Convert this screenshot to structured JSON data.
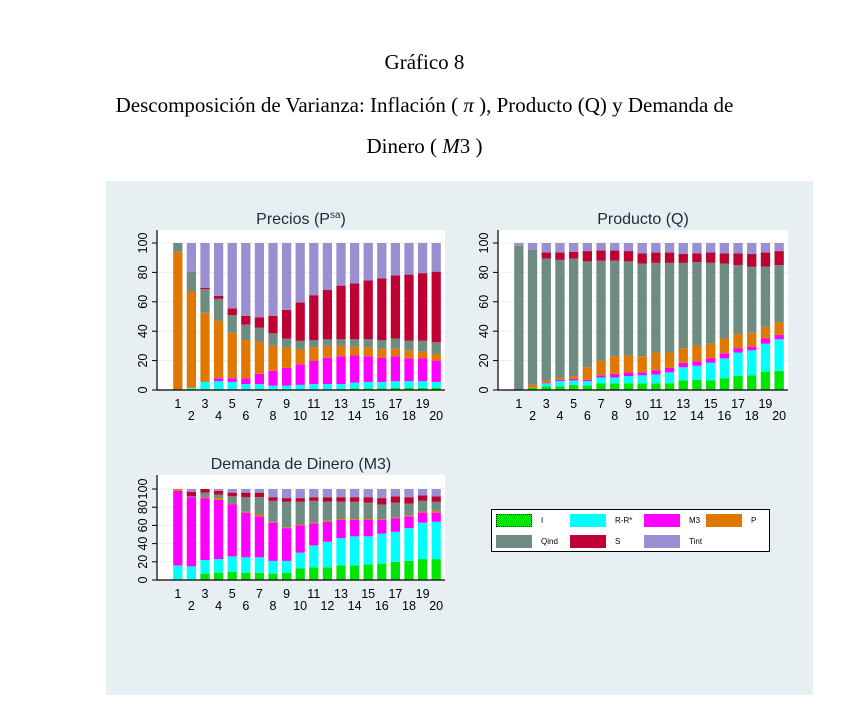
{
  "document": {
    "figure_label": "Gráfico 8",
    "title_line1_a": "Descomposición de Varianza: Inflación (",
    "title_pi": "π",
    "title_line1_b": "), Producto (Q) y Demanda de",
    "title_line2_a": "Dinero (",
    "title_m3": "M",
    "title_m3_num": "3",
    "title_line2_b": ")"
  },
  "colors": {
    "I": "#00e600",
    "R-R*": "#00ffff",
    "M3": "#ff00ff",
    "P": "#e07800",
    "Qind": "#6e8c82",
    "S": "#be0032",
    "Tint": "#9a8fd0",
    "panel_bg": "#e8eff2"
  },
  "legend": {
    "items": [
      {
        "key": "I",
        "label": "I"
      },
      {
        "key": "R-R*",
        "label": "R-R*"
      },
      {
        "key": "M3",
        "label": "M3"
      },
      {
        "key": "P",
        "label": "P"
      },
      {
        "key": "Qind",
        "label": "Qind"
      },
      {
        "key": "S",
        "label": "S"
      },
      {
        "key": "Tint",
        "label": "Tint"
      }
    ]
  },
  "chart_data": [
    {
      "type": "bar",
      "stacked": true,
      "title": "Precios (P",
      "title_sup": "sa",
      "title_end": ")",
      "ylim": [
        0,
        100
      ],
      "yticks": [
        "0",
        "20",
        "40",
        "60",
        "80",
        "100"
      ],
      "categories": [
        "1",
        "2",
        "3",
        "4",
        "5",
        "6",
        "7",
        "8",
        "9",
        "10",
        "11",
        "12",
        "13",
        "14",
        "15",
        "16",
        "17",
        "18",
        "19",
        "20"
      ],
      "series": [
        {
          "name": "I",
          "values": [
            0,
            0,
            0.5,
            0.5,
            0.5,
            0.5,
            0.5,
            0.5,
            0.5,
            0.5,
            0.5,
            0.5,
            0.5,
            1,
            1,
            1,
            1.5,
            1.5,
            1.5,
            1.5
          ]
        },
        {
          "name": "R-R*",
          "values": [
            0,
            1.5,
            5,
            5.5,
            5,
            3.5,
            3.5,
            2.5,
            2.5,
            3,
            3.5,
            3.5,
            3.5,
            4,
            4.5,
            4.5,
            4.5,
            4.5,
            4.5,
            4
          ]
        },
        {
          "name": "M3",
          "values": [
            0,
            0,
            0,
            2,
            2.5,
            4,
            7,
            10,
            12,
            14,
            16,
            18,
            19,
            18.5,
            17.5,
            16.5,
            17,
            15.5,
            15.5,
            14.5
          ]
        },
        {
          "name": "P",
          "values": [
            94,
            65.5,
            47,
            39,
            31,
            26,
            22,
            17,
            14,
            10,
            9,
            8,
            7,
            6,
            6,
            6,
            5,
            5.5,
            4.5,
            4.5
          ]
        },
        {
          "name": "Qind",
          "values": [
            6,
            13.5,
            16,
            15,
            12,
            10.5,
            9.5,
            8.5,
            6,
            6,
            5,
            4.5,
            4.5,
            5,
            5.5,
            6,
            7,
            6.5,
            7.5,
            8
          ]
        },
        {
          "name": "S",
          "values": [
            0,
            0,
            1,
            2,
            4.5,
            6,
            7,
            12,
            19.5,
            26,
            30.5,
            33.5,
            36.5,
            38,
            40,
            42,
            43,
            45,
            46,
            48
          ]
        },
        {
          "name": "Tint",
          "values": [
            0,
            19.5,
            30.5,
            36,
            44.5,
            49.5,
            50.5,
            49.5,
            45.5,
            40.5,
            35.5,
            32,
            29,
            27.5,
            25.5,
            24,
            22,
            21.5,
            20.5,
            19.5
          ]
        }
      ]
    },
    {
      "type": "bar",
      "stacked": true,
      "title": "Producto (Q)",
      "ylim": [
        0,
        100
      ],
      "yticks": [
        "0",
        "20",
        "40",
        "60",
        "80",
        "100"
      ],
      "categories": [
        "1",
        "2",
        "3",
        "4",
        "5",
        "6",
        "7",
        "8",
        "9",
        "10",
        "11",
        "12",
        "13",
        "14",
        "15",
        "16",
        "17",
        "18",
        "19",
        "20"
      ],
      "series": [
        {
          "name": "I",
          "values": [
            0,
            1.5,
            2.5,
            2.5,
            3.5,
            3,
            4.5,
            4.5,
            4.5,
            4.5,
            4.5,
            4.5,
            6.5,
            7,
            6.5,
            8,
            9.5,
            10,
            12.5,
            13
          ]
        },
        {
          "name": "R-R*",
          "values": [
            0,
            0,
            2,
            3.5,
            3,
            3,
            4,
            4,
            5,
            5.5,
            6,
            7.5,
            9,
            9.5,
            12,
            13.5,
            16,
            17,
            19,
            21.5
          ]
        },
        {
          "name": "M3",
          "values": [
            0,
            0,
            0.5,
            1,
            1,
            1,
            1.5,
            2.5,
            2.5,
            2,
            3,
            3,
            3,
            3,
            3,
            3.5,
            3,
            2.5,
            3.5,
            3
          ]
        },
        {
          "name": "P",
          "values": [
            0,
            2,
            1.5,
            1.5,
            2,
            8.5,
            10,
            12,
            11.5,
            11,
            12,
            10.5,
            10,
            10.5,
            10,
            10,
            9.5,
            9.5,
            8,
            8.5
          ]
        },
        {
          "name": "Qind",
          "values": [
            98,
            92,
            83,
            80,
            80,
            72,
            68,
            65,
            64,
            63,
            61,
            61,
            58,
            57,
            55,
            51,
            47,
            45,
            41,
            39
          ]
        },
        {
          "name": "S",
          "values": [
            0,
            0,
            4,
            5,
            4.5,
            7,
            7,
            7,
            7,
            7,
            7,
            7,
            6,
            6,
            7,
            7,
            8,
            8.5,
            9.5,
            9.5
          ]
        },
        {
          "name": "Tint",
          "values": [
            2,
            4.5,
            6.5,
            6.5,
            6,
            5.5,
            5,
            5,
            5.5,
            7,
            6.5,
            6.5,
            7.5,
            7,
            6.5,
            7,
            7,
            7.5,
            6.5,
            5.5
          ]
        }
      ]
    },
    {
      "type": "bar",
      "stacked": true,
      "title": "Demanda de Dinero (M3)",
      "ylim": [
        0,
        100
      ],
      "yticks": [
        "0",
        "20",
        "40",
        "60",
        "80",
        "100"
      ],
      "categories": [
        "1",
        "2",
        "3",
        "4",
        "5",
        "6",
        "7",
        "8",
        "9",
        "10",
        "11",
        "12",
        "13",
        "14",
        "15",
        "16",
        "17",
        "18",
        "19",
        "20"
      ],
      "series": [
        {
          "name": "I",
          "values": [
            0,
            0,
            7,
            8,
            9,
            8,
            8,
            7,
            8,
            13,
            14,
            14,
            16,
            16,
            17,
            18,
            20,
            21,
            23,
            23
          ]
        },
        {
          "name": "R-R*",
          "values": [
            16,
            15,
            15,
            15,
            17,
            17,
            17,
            14,
            13,
            17,
            24,
            28,
            30,
            32,
            31,
            33,
            33,
            36,
            40,
            41
          ]
        },
        {
          "name": "M3",
          "values": [
            82,
            76,
            68,
            65,
            57,
            49,
            45,
            42,
            36,
            30,
            24,
            22,
            20,
            18,
            18,
            15,
            15,
            13,
            11,
            10
          ]
        },
        {
          "name": "P",
          "values": [
            2,
            0,
            1,
            2,
            1,
            1,
            2,
            1,
            1,
            1,
            1,
            1,
            1,
            1,
            1,
            1,
            1,
            1,
            1,
            2
          ]
        },
        {
          "name": "Qind",
          "values": [
            0,
            1,
            5,
            4,
            8,
            16,
            19,
            23,
            28,
            25,
            24,
            21,
            19,
            19,
            18,
            16,
            16,
            13,
            12,
            10
          ]
        },
        {
          "name": "S",
          "values": [
            0,
            5,
            4,
            4,
            4,
            5,
            5,
            4,
            4,
            4,
            4,
            5,
            5,
            5,
            6,
            7,
            7,
            7,
            6,
            6
          ]
        },
        {
          "name": "Tint",
          "values": [
            0,
            3,
            0,
            2,
            4,
            4,
            4,
            9,
            10,
            10,
            9,
            9,
            9,
            9,
            9,
            10,
            8,
            9,
            7,
            8
          ]
        }
      ]
    }
  ]
}
